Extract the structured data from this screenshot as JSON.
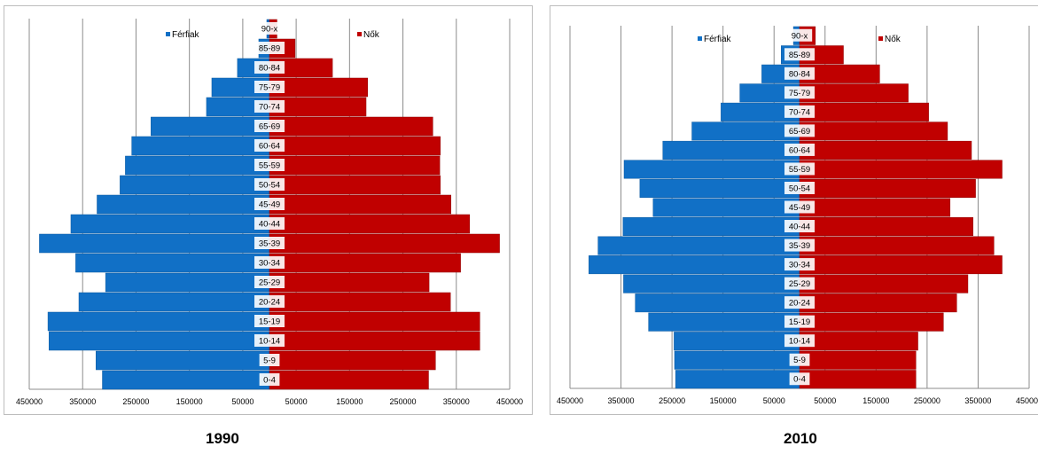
{
  "colors": {
    "male": "#1170c6",
    "female": "#c00000",
    "grid": "#8c8c8c",
    "border": "#bdbdbd"
  },
  "chart_data": [
    {
      "type": "bar",
      "orientation": "horizontal-population-pyramid",
      "title": "1990",
      "legend": [
        "Férfiak",
        "Nők"
      ],
      "legend_placement": "top",
      "grid": true,
      "xlim": [
        -450000,
        450000
      ],
      "xticks": [
        "450000",
        "350000",
        "250000",
        "150000",
        "50000",
        "50000",
        "150000",
        "250000",
        "350000",
        "450000"
      ],
      "categories": [
        "0-4",
        "5-9",
        "10-14",
        "15-19",
        "20-24",
        "25-29",
        "30-34",
        "35-39",
        "40-44",
        "45-49",
        "50-54",
        "55-59",
        "60-64",
        "65-69",
        "70-74",
        "75-79",
        "80-84",
        "85-89",
        "90-x"
      ],
      "series": [
        {
          "name": "Férfiak",
          "values": [
            313000,
            325000,
            413000,
            415000,
            357000,
            307000,
            363000,
            431000,
            372000,
            323000,
            280000,
            270000,
            258000,
            222000,
            118000,
            108000,
            60000,
            20000,
            5000
          ]
        },
        {
          "name": "Nők",
          "values": [
            298000,
            311000,
            394000,
            394000,
            339000,
            299000,
            358000,
            431000,
            375000,
            340000,
            320000,
            319000,
            320000,
            306000,
            181000,
            184000,
            118000,
            48000,
            14000
          ]
        }
      ]
    },
    {
      "type": "bar",
      "orientation": "horizontal-population-pyramid",
      "title": "2010",
      "legend": [
        "Férfiak",
        "Nők"
      ],
      "legend_placement": "top",
      "grid": true,
      "xlim": [
        -450000,
        450000
      ],
      "xticks": [
        "450000",
        "350000",
        "250000",
        "150000",
        "50000",
        "50000",
        "150000",
        "250000",
        "350000",
        "450000"
      ],
      "categories": [
        "0-4",
        "5-9",
        "10-14",
        "15-19",
        "20-24",
        "25-29",
        "30-34",
        "35-39",
        "40-44",
        "45-49",
        "50-54",
        "55-59",
        "60-64",
        "65-69",
        "70-74",
        "75-79",
        "80-84",
        "85-89",
        "90-x"
      ],
      "series": [
        {
          "name": "Férfiak",
          "values": [
            243000,
            245000,
            246000,
            296000,
            322000,
            345000,
            413000,
            395000,
            346000,
            287000,
            313000,
            344000,
            268000,
            211000,
            154000,
            117000,
            74000,
            36000,
            12000
          ]
        },
        {
          "name": "Nők",
          "values": [
            228000,
            228000,
            232000,
            282000,
            308000,
            330000,
            397000,
            381000,
            340000,
            295000,
            345000,
            397000,
            337000,
            290000,
            253000,
            213000,
            157000,
            86000,
            31000
          ]
        }
      ]
    }
  ]
}
